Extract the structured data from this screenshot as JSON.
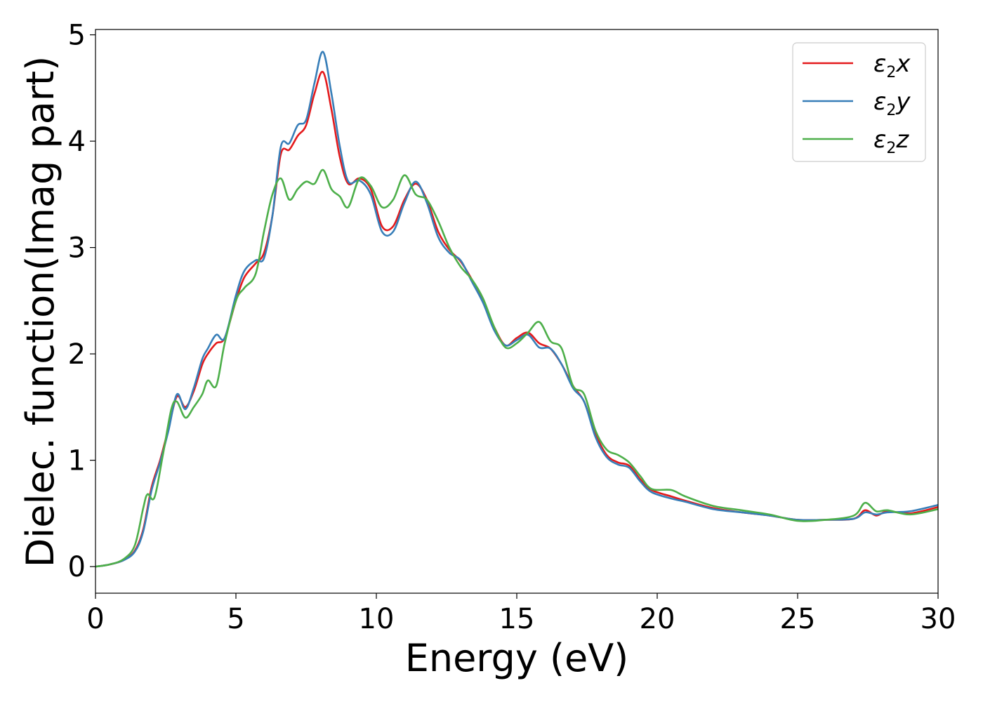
{
  "chart_data": {
    "type": "line",
    "xlabel": "Energy (eV)",
    "ylabel": "Dielec. function(Imag part)",
    "xlim": [
      0,
      30
    ],
    "ylim": [
      -0.25,
      5.05
    ],
    "xticks": [
      0,
      5,
      10,
      15,
      20,
      25,
      30
    ],
    "yticks": [
      0,
      1,
      2,
      3,
      4,
      5
    ],
    "grid": false,
    "legend_position": "top-right",
    "series": [
      {
        "name": "ε2x",
        "legend_symbol": "ε",
        "legend_sub": "2",
        "legend_var": "x",
        "color": "#e41a1c",
        "x": [
          0,
          0.5,
          1.0,
          1.4,
          1.7,
          2.0,
          2.3,
          2.6,
          2.9,
          3.2,
          3.5,
          3.8,
          4.0,
          4.3,
          4.6,
          5.0,
          5.3,
          5.7,
          6.0,
          6.3,
          6.6,
          6.9,
          7.2,
          7.5,
          7.8,
          8.1,
          8.4,
          8.7,
          9.0,
          9.4,
          9.8,
          10.2,
          10.6,
          11.0,
          11.4,
          11.8,
          12.2,
          12.6,
          13.0,
          13.4,
          13.8,
          14.2,
          14.6,
          15.0,
          15.4,
          15.8,
          16.2,
          16.6,
          17.0,
          17.4,
          17.8,
          18.2,
          18.6,
          19.0,
          19.4,
          19.8,
          20.5,
          21.0,
          22.0,
          23.0,
          24.0,
          25.0,
          26.0,
          27.0,
          27.4,
          27.8,
          28.2,
          29.0,
          30.0
        ],
        "values": [
          0,
          0.02,
          0.06,
          0.15,
          0.35,
          0.75,
          1.0,
          1.3,
          1.6,
          1.5,
          1.65,
          1.9,
          2.0,
          2.1,
          2.15,
          2.5,
          2.72,
          2.85,
          2.95,
          3.3,
          3.88,
          3.92,
          4.05,
          4.15,
          4.45,
          4.65,
          4.3,
          3.85,
          3.6,
          3.65,
          3.55,
          3.2,
          3.2,
          3.45,
          3.6,
          3.45,
          3.15,
          2.98,
          2.87,
          2.7,
          2.5,
          2.25,
          2.08,
          2.15,
          2.2,
          2.1,
          2.05,
          1.9,
          1.7,
          1.55,
          1.25,
          1.05,
          0.98,
          0.95,
          0.82,
          0.72,
          0.66,
          0.62,
          0.55,
          0.51,
          0.48,
          0.44,
          0.44,
          0.45,
          0.53,
          0.48,
          0.52,
          0.5,
          0.56
        ]
      },
      {
        "name": "ε2y",
        "legend_symbol": "ε",
        "legend_sub": "2",
        "legend_var": "y",
        "color": "#377eb8",
        "x": [
          0,
          0.5,
          1.0,
          1.4,
          1.7,
          2.0,
          2.3,
          2.6,
          2.9,
          3.2,
          3.5,
          3.8,
          4.0,
          4.3,
          4.6,
          5.0,
          5.3,
          5.7,
          6.0,
          6.3,
          6.6,
          6.9,
          7.2,
          7.5,
          7.8,
          8.1,
          8.4,
          8.7,
          9.0,
          9.4,
          9.8,
          10.2,
          10.6,
          11.0,
          11.4,
          11.8,
          12.2,
          12.6,
          13.0,
          13.4,
          13.8,
          14.2,
          14.6,
          15.0,
          15.4,
          15.8,
          16.2,
          16.6,
          17.0,
          17.4,
          17.8,
          18.2,
          18.6,
          19.0,
          19.4,
          19.8,
          20.5,
          21.0,
          22.0,
          23.0,
          24.0,
          25.0,
          26.0,
          27.0,
          27.4,
          27.8,
          28.2,
          29.0,
          30.0
        ],
        "values": [
          0,
          0.02,
          0.06,
          0.14,
          0.33,
          0.72,
          0.98,
          1.28,
          1.62,
          1.48,
          1.68,
          1.95,
          2.05,
          2.18,
          2.15,
          2.55,
          2.78,
          2.88,
          2.9,
          3.3,
          3.95,
          3.98,
          4.15,
          4.2,
          4.55,
          4.84,
          4.45,
          3.95,
          3.62,
          3.63,
          3.5,
          3.15,
          3.15,
          3.42,
          3.62,
          3.42,
          3.1,
          2.95,
          2.88,
          2.68,
          2.48,
          2.22,
          2.08,
          2.13,
          2.18,
          2.06,
          2.05,
          1.9,
          1.68,
          1.55,
          1.22,
          1.03,
          0.96,
          0.93,
          0.8,
          0.7,
          0.64,
          0.61,
          0.54,
          0.51,
          0.48,
          0.44,
          0.44,
          0.45,
          0.51,
          0.49,
          0.51,
          0.52,
          0.58
        ]
      },
      {
        "name": "ε2z",
        "legend_symbol": "ε",
        "legend_sub": "2",
        "legend_var": "z",
        "color": "#4daf4a",
        "x": [
          0,
          0.5,
          1.0,
          1.4,
          1.7,
          1.85,
          2.1,
          2.4,
          2.7,
          2.9,
          3.2,
          3.5,
          3.8,
          4.0,
          4.3,
          4.6,
          5.0,
          5.3,
          5.7,
          6.0,
          6.3,
          6.6,
          6.9,
          7.2,
          7.5,
          7.8,
          8.1,
          8.4,
          8.7,
          9.0,
          9.4,
          9.8,
          10.2,
          10.6,
          11.0,
          11.4,
          11.8,
          12.2,
          12.6,
          13.0,
          13.4,
          13.8,
          14.2,
          14.6,
          15.0,
          15.4,
          15.8,
          16.2,
          16.6,
          17.0,
          17.4,
          17.8,
          18.2,
          18.6,
          19.0,
          19.4,
          19.8,
          20.5,
          21.0,
          22.0,
          23.0,
          24.0,
          25.0,
          26.0,
          27.0,
          27.4,
          27.8,
          28.2,
          29.0,
          30.0
        ],
        "values": [
          0,
          0.02,
          0.07,
          0.2,
          0.55,
          0.68,
          0.65,
          1.05,
          1.48,
          1.55,
          1.4,
          1.5,
          1.62,
          1.75,
          1.7,
          2.1,
          2.5,
          2.62,
          2.75,
          3.15,
          3.5,
          3.65,
          3.45,
          3.55,
          3.62,
          3.6,
          3.73,
          3.55,
          3.48,
          3.38,
          3.65,
          3.58,
          3.38,
          3.45,
          3.68,
          3.5,
          3.45,
          3.25,
          3.0,
          2.82,
          2.7,
          2.52,
          2.25,
          2.06,
          2.1,
          2.2,
          2.3,
          2.12,
          2.05,
          1.7,
          1.62,
          1.28,
          1.1,
          1.05,
          0.98,
          0.85,
          0.73,
          0.72,
          0.66,
          0.57,
          0.53,
          0.49,
          0.43,
          0.44,
          0.48,
          0.6,
          0.52,
          0.53,
          0.49,
          0.54
        ]
      }
    ]
  }
}
